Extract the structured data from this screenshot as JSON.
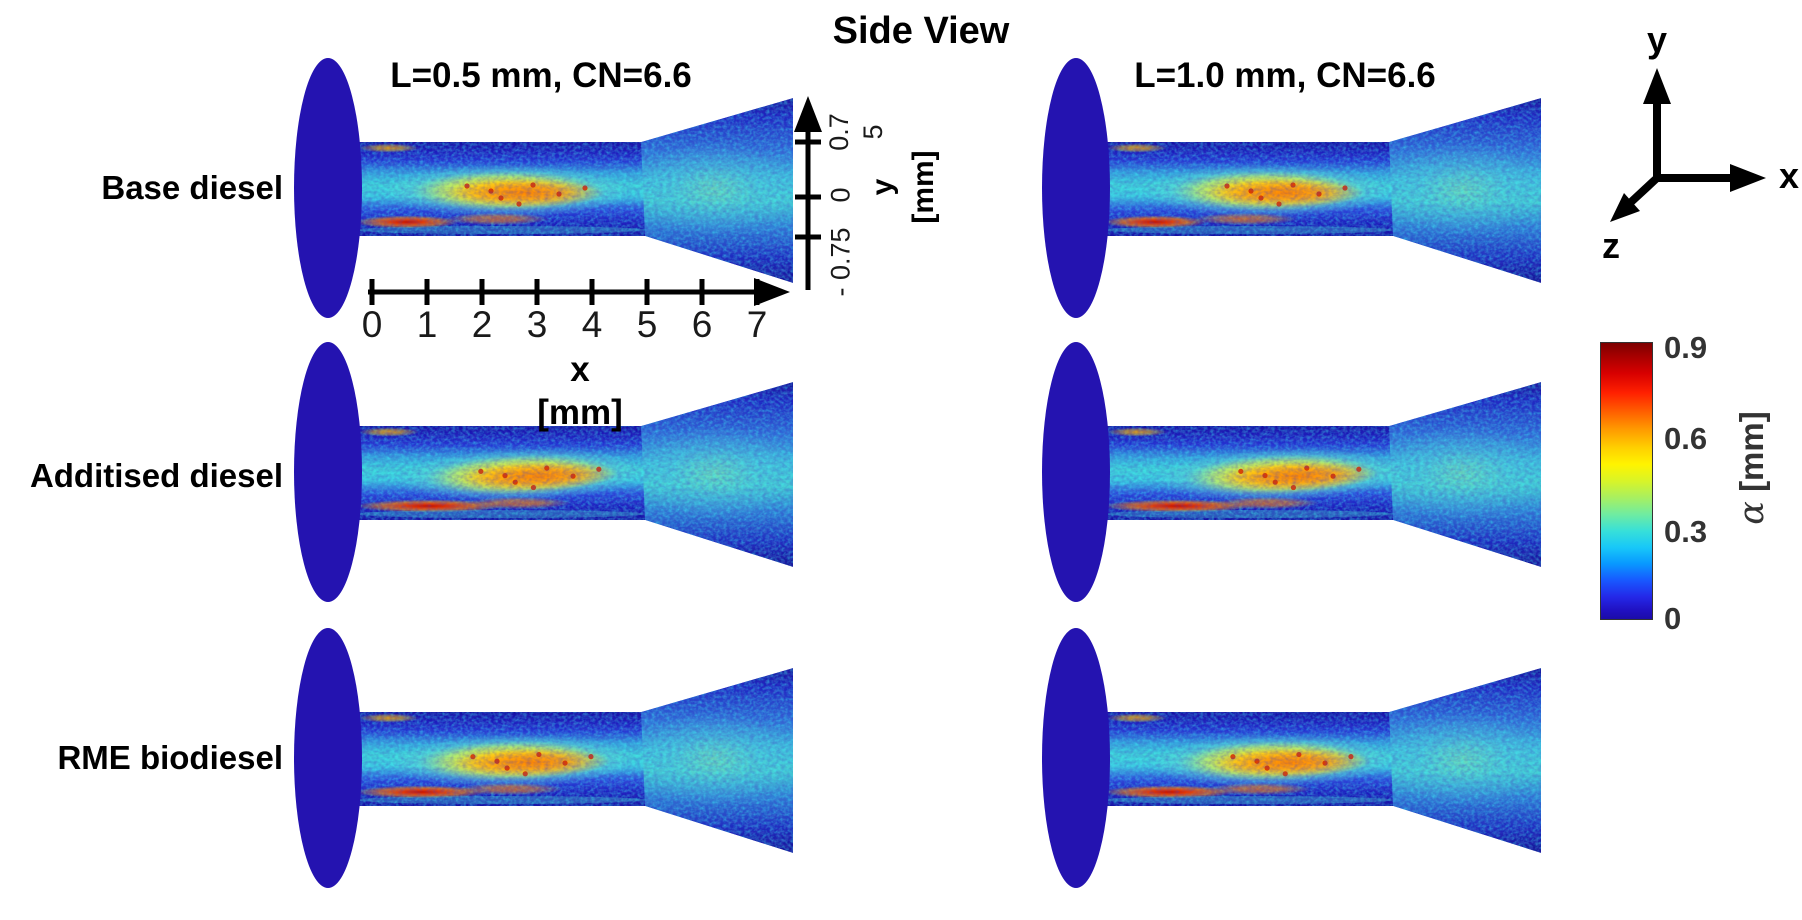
{
  "title": "Side View",
  "columns": [
    {
      "label": "L=0.5 mm, CN=6.6"
    },
    {
      "label": "L=1.0 mm, CN=6.6"
    }
  ],
  "rows": [
    {
      "label": "Base diesel"
    },
    {
      "label": "Additised diesel"
    },
    {
      "label": "RME biodiesel"
    }
  ],
  "x_axis": {
    "ticks": [
      "0",
      "1",
      "2",
      "3",
      "4",
      "5",
      "6",
      "7"
    ],
    "label": "x",
    "unit": "[mm]"
  },
  "y_axis": {
    "tick_top": "0.7",
    "tick_top_wrap": "5",
    "tick_mid": "0",
    "tick_bottom": "- 0.75",
    "label": "y",
    "unit": "[mm]"
  },
  "triad": {
    "x": "x",
    "y": "y",
    "z": "z"
  },
  "colorbar": {
    "ticks": [
      "0.9",
      "0.6",
      "0.3",
      "0"
    ],
    "symbol": "α",
    "unit": "[mm]"
  },
  "colors": {
    "background": "#ffffff",
    "sac_ellipse_blue": "#2413b0",
    "colormap": "jet"
  },
  "chart_data": {
    "type": "heatmap",
    "title": "Side View",
    "grid": {
      "rows": 3,
      "cols": 2
    },
    "row_labels": [
      "Base diesel",
      "Additised diesel",
      "RME biodiesel"
    ],
    "col_labels": [
      "L=0.5 mm, CN=6.6",
      "L=1.0 mm, CN=6.6"
    ],
    "x_axis": {
      "label": "x [mm]",
      "ticks": [
        0,
        1,
        2,
        3,
        4,
        5,
        6,
        7
      ],
      "range": [
        0,
        7.7
      ]
    },
    "y_axis": {
      "label": "y [mm]",
      "ticks": [
        0.75,
        0,
        -0.75
      ],
      "range": [
        -0.75,
        0.75
      ]
    },
    "colorbar": {
      "label": "α [mm]",
      "colormap": "jet",
      "range": [
        0,
        0.9
      ],
      "ticks": [
        0,
        0.3,
        0.6,
        0.9
      ]
    },
    "geometry": "Each panel: dark-blue sac-volume ellipse left of x=0; nozzle channel from x=0 to x≈5 mm between y≈-0.75 and y≈0.75 mm; diverging spray plume from x≈5 to x≈7.7 mm",
    "observations": "All six panels show high void fraction (yellow-orange, α≈0.5-0.7 mm) along the channel centreline, a red streak (α≈0.8-0.9 mm) on the lower wall near the inlet (x≈0-1.5 mm, strongest for Additised diesel), a thin orange streak at the upper inlet corner, cyan-blue background (α≈0.1-0.3 mm) and a speckled blue-cyan expanding plume"
  }
}
